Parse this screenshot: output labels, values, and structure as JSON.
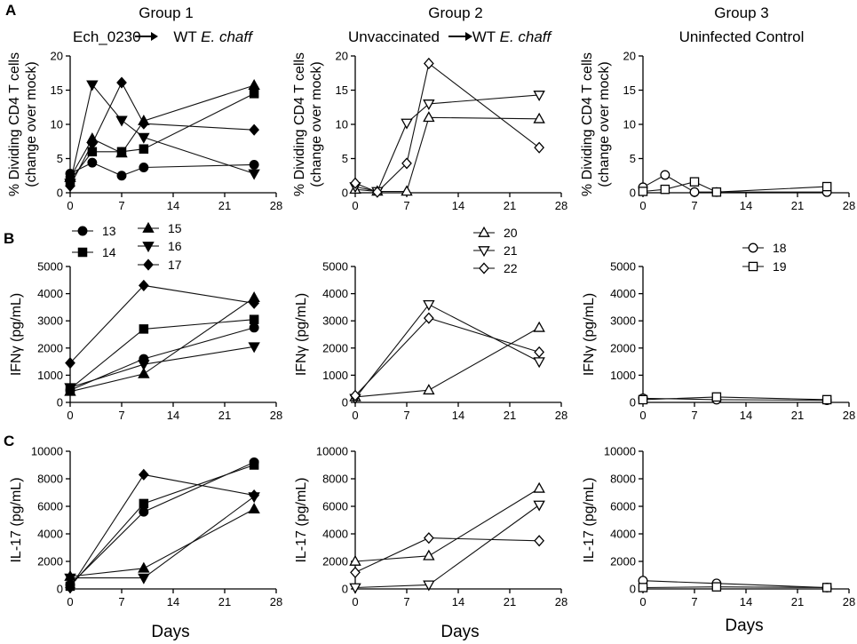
{
  "panel_labels": [
    "A",
    "B",
    "C"
  ],
  "groups": [
    {
      "title": "Group 1",
      "subtitle_pre": "Ech_0230",
      "subtitle_post": "WT",
      "subtitle_em": "E. chaff"
    },
    {
      "title": "Group 2",
      "subtitle_pre": "Unvaccinated",
      "subtitle_post": "WT",
      "subtitle_em": "E. chaff"
    },
    {
      "title": "Group 3",
      "subtitle_pre": "Uninfected Control",
      "subtitle_post": "",
      "subtitle_em": ""
    }
  ],
  "rows": [
    {
      "ylabel_lines": [
        "% Dividing CD4 T cells",
        "(change over mock)"
      ]
    },
    {
      "ylabel_lines": [
        "IFNγ (pg/mL)"
      ]
    },
    {
      "ylabel_lines": [
        "IL-17 (pg/mL)"
      ]
    }
  ],
  "xlabel": "Days",
  "legends": [
    {
      "entries": [
        {
          "label": "13",
          "marker": "circle",
          "filled": true
        },
        {
          "label": "14",
          "marker": "square",
          "filled": true
        },
        {
          "label": "15",
          "marker": "triangle-up",
          "filled": true
        },
        {
          "label": "16",
          "marker": "triangle-down",
          "filled": true
        },
        {
          "label": "17",
          "marker": "diamond",
          "filled": true
        }
      ]
    },
    {
      "entries": [
        {
          "label": "20",
          "marker": "triangle-up",
          "filled": false
        },
        {
          "label": "21",
          "marker": "triangle-down",
          "filled": false
        },
        {
          "label": "22",
          "marker": "diamond",
          "filled": false
        }
      ]
    },
    {
      "entries": [
        {
          "label": "18",
          "marker": "circle",
          "filled": false
        },
        {
          "label": "19",
          "marker": "square",
          "filled": false
        }
      ]
    }
  ],
  "chart_data": [
    {
      "type": "line",
      "panel": "A",
      "group": "Group 1",
      "title": "Group 1",
      "xlabel": "",
      "ylabel": "% Dividing CD4 T cells (change over mock)",
      "xlim": [
        0,
        28
      ],
      "ylim": [
        0,
        20
      ],
      "xticks": [
        0,
        7,
        14,
        21,
        28
      ],
      "yticks": [
        0,
        5,
        10,
        15,
        20
      ],
      "series": [
        {
          "name": "13",
          "marker": "circle",
          "filled": true,
          "x": [
            0,
            3,
            7,
            10,
            25
          ],
          "y": [
            2.8,
            4.4,
            2.5,
            3.7,
            4.1
          ]
        },
        {
          "name": "14",
          "marker": "square",
          "filled": true,
          "x": [
            0,
            3,
            7,
            10,
            25
          ],
          "y": [
            1.8,
            6.0,
            6.0,
            6.4,
            14.5
          ]
        },
        {
          "name": "15",
          "marker": "triangle-up",
          "filled": true,
          "x": [
            0,
            3,
            7,
            10,
            25
          ],
          "y": [
            2.2,
            7.9,
            5.8,
            10.5,
            15.7
          ]
        },
        {
          "name": "16",
          "marker": "triangle-down",
          "filled": true,
          "x": [
            0,
            3,
            7,
            10,
            25
          ],
          "y": [
            1.4,
            15.8,
            10.6,
            8.1,
            2.8
          ]
        },
        {
          "name": "17",
          "marker": "diamond",
          "filled": true,
          "x": [
            0,
            3,
            7,
            10,
            25
          ],
          "y": [
            1.0,
            7.2,
            16.1,
            10.1,
            9.2
          ]
        }
      ]
    },
    {
      "type": "line",
      "panel": "A",
      "group": "Group 2",
      "title": "Group 2",
      "xlabel": "",
      "ylabel": "% Dividing CD4 T cells (change over mock)",
      "xlim": [
        0,
        28
      ],
      "ylim": [
        0,
        20
      ],
      "xticks": [
        0,
        7,
        14,
        21,
        28
      ],
      "yticks": [
        0,
        5,
        10,
        15,
        20
      ],
      "series": [
        {
          "name": "20",
          "marker": "triangle-up",
          "filled": false,
          "x": [
            0,
            3,
            7,
            10,
            25
          ],
          "y": [
            0.5,
            0.2,
            0.2,
            11.0,
            10.8
          ]
        },
        {
          "name": "21",
          "marker": "triangle-down",
          "filled": false,
          "x": [
            0,
            3,
            7,
            10,
            25
          ],
          "y": [
            0.9,
            0.2,
            10.2,
            13.0,
            14.3
          ]
        },
        {
          "name": "22",
          "marker": "diamond",
          "filled": false,
          "x": [
            0,
            3,
            7,
            10,
            25
          ],
          "y": [
            1.4,
            0.1,
            4.3,
            18.9,
            6.6
          ]
        }
      ]
    },
    {
      "type": "line",
      "panel": "A",
      "group": "Group 3",
      "title": "Group 3",
      "xlabel": "",
      "ylabel": "% Dividing CD4 T cells (change over mock)",
      "xlim": [
        0,
        28
      ],
      "ylim": [
        0,
        20
      ],
      "xticks": [
        0,
        7,
        14,
        21,
        28
      ],
      "yticks": [
        0,
        5,
        10,
        15,
        20
      ],
      "series": [
        {
          "name": "18",
          "marker": "circle",
          "filled": false,
          "x": [
            0,
            3,
            7,
            10,
            25
          ],
          "y": [
            0.8,
            2.6,
            0.1,
            0.1,
            0.1
          ]
        },
        {
          "name": "19",
          "marker": "square",
          "filled": false,
          "x": [
            0,
            3,
            7,
            10,
            25
          ],
          "y": [
            0.2,
            0.5,
            1.6,
            0.1,
            0.9
          ]
        }
      ]
    },
    {
      "type": "line",
      "panel": "B",
      "group": "Group 1",
      "title": "",
      "xlabel": "",
      "ylabel": "IFNγ (pg/mL)",
      "xlim": [
        0,
        28
      ],
      "ylim": [
        0,
        5000
      ],
      "xticks": [
        0,
        7,
        14,
        21,
        28
      ],
      "yticks": [
        0,
        1000,
        2000,
        3000,
        4000,
        5000
      ],
      "series": [
        {
          "name": "13",
          "marker": "circle",
          "filled": true,
          "x": [
            0,
            10,
            25
          ],
          "y": [
            450,
            1600,
            2750
          ]
        },
        {
          "name": "14",
          "marker": "square",
          "filled": true,
          "x": [
            0,
            10,
            25
          ],
          "y": [
            500,
            2700,
            3050
          ]
        },
        {
          "name": "15",
          "marker": "triangle-up",
          "filled": true,
          "x": [
            0,
            10,
            25
          ],
          "y": [
            400,
            1050,
            3850
          ]
        },
        {
          "name": "16",
          "marker": "triangle-down",
          "filled": true,
          "x": [
            0,
            10,
            25
          ],
          "y": [
            550,
            1400,
            2050
          ]
        },
        {
          "name": "17",
          "marker": "diamond",
          "filled": true,
          "x": [
            0,
            10,
            25
          ],
          "y": [
            1450,
            4300,
            3650
          ]
        }
      ]
    },
    {
      "type": "line",
      "panel": "B",
      "group": "Group 2",
      "title": "",
      "xlabel": "",
      "ylabel": "IFNγ (pg/mL)",
      "xlim": [
        0,
        28
      ],
      "ylim": [
        0,
        5000
      ],
      "xticks": [
        0,
        7,
        14,
        21,
        28
      ],
      "yticks": [
        0,
        1000,
        2000,
        3000,
        4000,
        5000
      ],
      "series": [
        {
          "name": "20",
          "marker": "triangle-up",
          "filled": false,
          "x": [
            0,
            10,
            25
          ],
          "y": [
            200,
            450,
            2750
          ]
        },
        {
          "name": "21",
          "marker": "triangle-down",
          "filled": false,
          "x": [
            0,
            10,
            25
          ],
          "y": [
            150,
            3600,
            1500
          ]
        },
        {
          "name": "22",
          "marker": "diamond",
          "filled": false,
          "x": [
            0,
            10,
            25
          ],
          "y": [
            250,
            3100,
            1850
          ]
        }
      ]
    },
    {
      "type": "line",
      "panel": "B",
      "group": "Group 3",
      "title": "",
      "xlabel": "",
      "ylabel": "IFNγ (pg/mL)",
      "xlim": [
        0,
        28
      ],
      "ylim": [
        0,
        5000
      ],
      "xticks": [
        0,
        7,
        14,
        21,
        28
      ],
      "yticks": [
        0,
        1000,
        2000,
        3000,
        4000,
        5000
      ],
      "series": [
        {
          "name": "18",
          "marker": "circle",
          "filled": false,
          "x": [
            0,
            10,
            25
          ],
          "y": [
            150,
            100,
            80
          ]
        },
        {
          "name": "19",
          "marker": "square",
          "filled": false,
          "x": [
            0,
            10,
            25
          ],
          "y": [
            100,
            200,
            100
          ]
        }
      ]
    },
    {
      "type": "line",
      "panel": "C",
      "group": "Group 1",
      "title": "",
      "xlabel": "Days",
      "ylabel": "IL-17 (pg/mL)",
      "xlim": [
        0,
        28
      ],
      "ylim": [
        0,
        10000
      ],
      "xticks": [
        0,
        7,
        14,
        21,
        28
      ],
      "yticks": [
        0,
        2000,
        4000,
        6000,
        8000,
        10000
      ],
      "series": [
        {
          "name": "13",
          "marker": "circle",
          "filled": true,
          "x": [
            0,
            10,
            25
          ],
          "y": [
            300,
            5600,
            9200
          ]
        },
        {
          "name": "14",
          "marker": "square",
          "filled": true,
          "x": [
            0,
            10,
            25
          ],
          "y": [
            200,
            6200,
            9000
          ]
        },
        {
          "name": "15",
          "marker": "triangle-up",
          "filled": true,
          "x": [
            0,
            10,
            25
          ],
          "y": [
            900,
            1500,
            5800
          ]
        },
        {
          "name": "16",
          "marker": "triangle-down",
          "filled": true,
          "x": [
            0,
            10,
            25
          ],
          "y": [
            800,
            800,
            6700
          ]
        },
        {
          "name": "17",
          "marker": "diamond",
          "filled": true,
          "x": [
            0,
            10,
            25
          ],
          "y": [
            100,
            8300,
            6800
          ]
        }
      ]
    },
    {
      "type": "line",
      "panel": "C",
      "group": "Group 2",
      "title": "",
      "xlabel": "Days",
      "ylabel": "IL-17 (pg/mL)",
      "xlim": [
        0,
        28
      ],
      "ylim": [
        0,
        10000
      ],
      "xticks": [
        0,
        7,
        14,
        21,
        28
      ],
      "yticks": [
        0,
        2000,
        4000,
        6000,
        8000,
        10000
      ],
      "series": [
        {
          "name": "20",
          "marker": "triangle-up",
          "filled": false,
          "x": [
            0,
            10,
            25
          ],
          "y": [
            2000,
            2400,
            7300
          ]
        },
        {
          "name": "21",
          "marker": "triangle-down",
          "filled": false,
          "x": [
            0,
            10,
            25
          ],
          "y": [
            100,
            300,
            6100
          ]
        },
        {
          "name": "22",
          "marker": "diamond",
          "filled": false,
          "x": [
            0,
            10,
            25
          ],
          "y": [
            1200,
            3700,
            3500
          ]
        }
      ]
    },
    {
      "type": "line",
      "panel": "C",
      "group": "Group 3",
      "title": "",
      "xlabel": "Days",
      "ylabel": "IL-17 (pg/mL)",
      "xlim": [
        0,
        28
      ],
      "ylim": [
        0,
        10000
      ],
      "xticks": [
        0,
        7,
        14,
        21,
        28
      ],
      "yticks": [
        0,
        2000,
        4000,
        6000,
        8000,
        10000
      ],
      "series": [
        {
          "name": "18",
          "marker": "circle",
          "filled": false,
          "x": [
            0,
            10,
            25
          ],
          "y": [
            600,
            400,
            100
          ]
        },
        {
          "name": "19",
          "marker": "square",
          "filled": false,
          "x": [
            0,
            10,
            25
          ],
          "y": [
            100,
            150,
            100
          ]
        }
      ]
    }
  ]
}
